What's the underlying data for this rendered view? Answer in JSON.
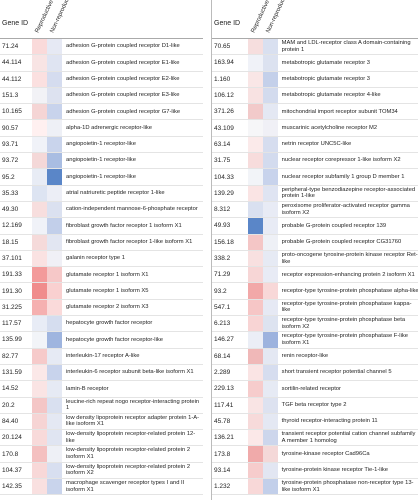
{
  "header": {
    "gene_id": "Gene ID",
    "reproductive": "Reproductive",
    "non_reproductive": "Non-reproductive"
  },
  "left": {
    "rows": [
      {
        "id": "71.24",
        "name": "adhesion G-protein coupled receptor D1-like",
        "colors": [
          "#fadada",
          "#e6e9f4"
        ]
      },
      {
        "id": "44.114",
        "name": "adhesion G-protein coupled receptor E1-like",
        "colors": [
          "#f8e4e4",
          "#dfe4f2"
        ]
      },
      {
        "id": "44.112",
        "name": "adhesion G-protein coupled receptor E2-like",
        "colors": [
          "#fbe0e0",
          "#d5dcef"
        ]
      },
      {
        "id": "151.3",
        "name": "adhesion G-protein coupled receptor E3-like",
        "colors": [
          "#f2f2f6",
          "#dde2f0"
        ]
      },
      {
        "id": "10.165",
        "name": "adhesion G-protein coupled receptor G7-like",
        "colors": [
          "#f5d5d5",
          "#c8d3ec"
        ]
      },
      {
        "id": "90.57",
        "name": "alpha-1D adrenergic receptor-like",
        "colors": [
          "#fff0f0",
          "#eef0f6"
        ]
      },
      {
        "id": "93.71",
        "name": "angiopoietin-1 receptor-like",
        "colors": [
          "#f0f2f8",
          "#c9d4ec"
        ]
      },
      {
        "id": "93.72",
        "name": "angiopoietin-1 receptor-like",
        "colors": [
          "#f4d8d8",
          "#a9bde2"
        ]
      },
      {
        "id": "95.2",
        "name": "angiopoietin-1 receptor-like",
        "colors": [
          "#e8ecf5",
          "#5a86c8"
        ]
      },
      {
        "id": "35.33",
        "name": "atrial natriuretic peptide receptor 1-like",
        "colors": [
          "#dde4f2",
          "#eceef6"
        ]
      },
      {
        "id": "49.30",
        "name": "cation-independent mannose-6-phosphate receptor",
        "colors": [
          "#f7dede",
          "#dbe1f0"
        ]
      },
      {
        "id": "12.169",
        "name": "fibroblast growth factor receptor 1 isoform X1",
        "colors": [
          "#f0f2f8",
          "#c2cfea"
        ]
      },
      {
        "id": "18.15",
        "name": "fibroblast growth factor receptor 1-like isoform X1",
        "colors": [
          "#f5dada",
          "#e2e6f2"
        ]
      },
      {
        "id": "37.101",
        "name": "galanin receptor type 1",
        "colors": [
          "#fae2e2",
          "#f0f0f6"
        ]
      },
      {
        "id": "191.33",
        "name": "glutamate receptor 1 isoform X1",
        "colors": [
          "#f39a9a",
          "#f6c8c8"
        ]
      },
      {
        "id": "191.30",
        "name": "glutamate receptor 1 isoform X5",
        "colors": [
          "#f08c8c",
          "#f9d0d0"
        ]
      },
      {
        "id": "31.225",
        "name": "glutamate receptor 2 isoform X3",
        "colors": [
          "#f5b0b0",
          "#fadada"
        ]
      },
      {
        "id": "117.57",
        "name": "hepatocyte growth factor receptor",
        "colors": [
          "#e8ecf6",
          "#d5ddef"
        ]
      },
      {
        "id": "135.99",
        "name": "hepatocyte growth factor receptor-like",
        "colors": [
          "#f2f4f8",
          "#9fb5df"
        ]
      },
      {
        "id": "82.77",
        "name": "interleukin-17 receptor A-like",
        "colors": [
          "#f6caca",
          "#e6eaf4"
        ]
      },
      {
        "id": "131.59",
        "name": "interleukin-6 receptor subunit beta-like isoform X1",
        "colors": [
          "#fbe8e8",
          "#c8d3ec"
        ]
      },
      {
        "id": "14.52",
        "name": "lamin-B receptor",
        "colors": [
          "#fae4e4",
          "#e6eaf4"
        ]
      },
      {
        "id": "20.2",
        "name": "leucine-rich repeat nogo receptor-interacting protein 1",
        "colors": [
          "#f4c6c6",
          "#d9e0f0"
        ]
      },
      {
        "id": "84.40",
        "name": "low density lipoprotein receptor adapter protein 1-A-like isoform X1",
        "colors": [
          "#f6d4d4",
          "#e4e8f3"
        ]
      },
      {
        "id": "20.124",
        "name": "low-density lipoprotein receptor-related protein 12-like",
        "colors": [
          "#f8dada",
          "#e0e5f2"
        ]
      },
      {
        "id": "170.8",
        "name": "low-density lipoprotein receptor-related protein 2 isoform X1",
        "colors": [
          "#f4c0c0",
          "#eef0f6"
        ]
      },
      {
        "id": "104.37",
        "name": "low-density lipoprotein receptor-related protein 2 isoform X2",
        "colors": [
          "#f8d8d8",
          "#d8dff0"
        ]
      },
      {
        "id": "142.35",
        "name": "macrophage scavenger receptor types I and II isoform X1",
        "colors": [
          "#f9e0e0",
          "#c9d4ec"
        ]
      }
    ]
  },
  "right": {
    "rows": [
      {
        "id": "70.65",
        "name": "MAM and LDL-receptor class A domain-containing protein 1",
        "colors": [
          "#f6dede",
          "#d9e0f0"
        ]
      },
      {
        "id": "163.94",
        "name": "metabotropic glutamate receptor 3",
        "colors": [
          "#f0f2f8",
          "#dce2f0"
        ]
      },
      {
        "id": "1.160",
        "name": "metabotropic glutamate receptor 3",
        "colors": [
          "#f9e6e6",
          "#c4d0ea"
        ]
      },
      {
        "id": "106.12",
        "name": "metabotropic glutamate receptor 4-like",
        "colors": [
          "#f8e2e2",
          "#d3dbee"
        ]
      },
      {
        "id": "371.26",
        "name": "mitochondrial import receptor subunit TOM34",
        "colors": [
          "#f2caca",
          "#e4e8f3"
        ]
      },
      {
        "id": "43.109",
        "name": "muscarinic acetylcholine receptor M2",
        "colors": [
          "#f6f6f8",
          "#f0f0f6"
        ]
      },
      {
        "id": "63.14",
        "name": "netrin receptor UNC5C-like",
        "colors": [
          "#fbeaea",
          "#d6ddef"
        ]
      },
      {
        "id": "31.75",
        "name": "nuclear receptor corepressor 1-like isoform X2",
        "colors": [
          "#f7dcdc",
          "#d3dbee"
        ]
      },
      {
        "id": "104.33",
        "name": "nuclear receptor subfamily 1 group D member 1",
        "colors": [
          "#f2f4f8",
          "#c8d3ec"
        ]
      },
      {
        "id": "139.29",
        "name": "peripheral-type benzodiazepine receptor-associated protein 1-like",
        "colors": [
          "#fae4e4",
          "#dfe4f2"
        ]
      },
      {
        "id": "8.312",
        "name": "peroxisome proliferator-activated receptor gamma isoform X2",
        "colors": [
          "#d9e0f0",
          "#e8ebf5"
        ]
      },
      {
        "id": "49.93",
        "name": "probable G-protein coupled receptor 139",
        "colors": [
          "#5a86c8",
          "#e8ebf5"
        ]
      },
      {
        "id": "156.18",
        "name": "probable G-protein coupled receptor CG31760",
        "colors": [
          "#f4c6c6",
          "#eef0f6"
        ]
      },
      {
        "id": "338.2",
        "name": "proto-oncogene tyrosine-protein kinase receptor Ret-like",
        "colors": [
          "#f8e0e0",
          "#e6eaf4"
        ]
      },
      {
        "id": "71.29",
        "name": "receptor expression-enhancing protein 2 isoform X1",
        "colors": [
          "#f7d6d6",
          "#e8ebf5"
        ]
      },
      {
        "id": "93.2",
        "name": "receptor-type tyrosine-protein phosphatase alpha-like",
        "colors": [
          "#f2a8a8",
          "#f8d8d8"
        ]
      },
      {
        "id": "547.1",
        "name": "receptor-type tyrosine-protein phosphatase kappa-like",
        "colors": [
          "#f6c6c6",
          "#e6e9f4"
        ]
      },
      {
        "id": "6.213",
        "name": "receptor-type tyrosine-protein phosphatase beta isoform X2",
        "colors": [
          "#f8d4d4",
          "#dde3f0"
        ]
      },
      {
        "id": "146.27",
        "name": "receptor-type tyrosine-protein phosphatase F-like isoform X1",
        "colors": [
          "#ebeef6",
          "#9db3de"
        ]
      },
      {
        "id": "68.14",
        "name": "renin receptor-like",
        "colors": [
          "#f0b8b8",
          "#e4e8f3"
        ]
      },
      {
        "id": "2.289",
        "name": "short transient receptor potential channel 5",
        "colors": [
          "#fae4e4",
          "#d6ddef"
        ]
      },
      {
        "id": "229.13",
        "name": "sortilin-related receptor",
        "colors": [
          "#f6cccc",
          "#e6eaf4"
        ]
      },
      {
        "id": "117.41",
        "name": "TGF beta receptor type 2",
        "colors": [
          "#f9e4e4",
          "#dde2f0"
        ]
      },
      {
        "id": "45.78",
        "name": "thyroid receptor-interacting protein 11",
        "colors": [
          "#f7dada",
          "#e4e8f3"
        ]
      },
      {
        "id": "136.21",
        "name": "transient receptor potential cation channel subfamily A member 1 homolog",
        "colors": [
          "#fbe8e8",
          "#cdd6ec"
        ]
      },
      {
        "id": "173.8",
        "name": "tyrosine-kinase receptor Cad96Ca",
        "colors": [
          "#f0aaaa",
          "#f4d8d8"
        ]
      },
      {
        "id": "93.14",
        "name": "tyrosine-protein kinase receptor Tie-1-like",
        "colors": [
          "#f6cccc",
          "#e2e6f2"
        ]
      },
      {
        "id": "1.232",
        "name": "tyrosine-protein phosphatase non-receptor type 13-like isoform X1",
        "colors": [
          "#f8d8d8",
          "#c2cfea"
        ]
      }
    ]
  }
}
